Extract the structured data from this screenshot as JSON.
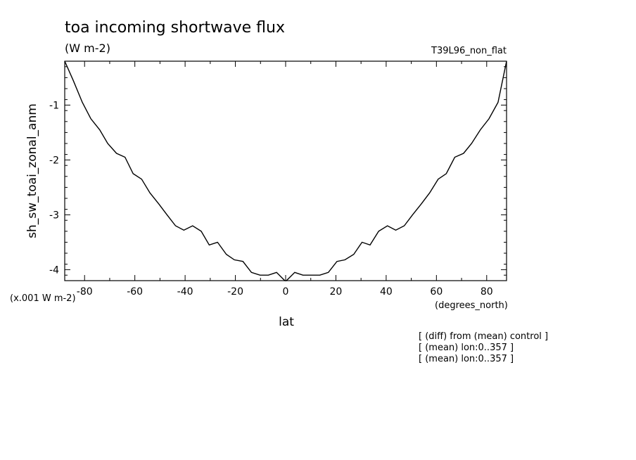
{
  "chart_data": {
    "type": "line",
    "title": "toa incoming shortwave flux",
    "units": "(W m-2)",
    "dataset": "T39L96_non_flat",
    "xlabel": "lat",
    "x_units": "(degrees_north)",
    "ylabel": "sh_sw_toai_zonal_anm",
    "y_units": "(x.001 W m-2)",
    "xlim": [
      -87.9,
      87.9
    ],
    "ylim": [
      -4.2,
      -0.2
    ],
    "xticks": [
      -80,
      -60,
      -40,
      -20,
      0,
      20,
      40,
      60,
      80
    ],
    "xtick_labels": [
      "-80",
      "-60",
      "-40",
      "-20",
      "0",
      "20",
      "40",
      "60",
      "80"
    ],
    "yticks": [
      -4,
      -3,
      -2,
      -1
    ],
    "ytick_labels": [
      "-4",
      "-3",
      "-2",
      "-1"
    ],
    "grid": false,
    "notes": [
      "[ (diff) from (mean) control ]",
      "[ (mean) lon:0..357 ]",
      "[ (mean) lon:0..357 ]"
    ],
    "series": [
      {
        "x": [
          -87.9,
          -84.5,
          -80.9,
          -77.5,
          -74.0,
          -70.8,
          -67.3,
          -63.9,
          -60.7,
          -57.3,
          -54.0,
          -50.5,
          -47.2,
          -43.8,
          -40.5,
          -37.0,
          -33.6,
          -30.4,
          -27.1,
          -23.6,
          -20.4,
          -17.0,
          -13.6,
          -10.2,
          -6.9,
          -3.6,
          -0.3,
          0.3,
          3.6,
          6.9,
          10.2,
          13.6,
          17.0,
          20.4,
          23.6,
          27.1,
          30.4,
          33.6,
          37.0,
          40.5,
          43.8,
          47.2,
          50.5,
          54.0,
          57.3,
          60.7,
          63.9,
          67.3,
          70.8,
          74.0,
          77.5,
          80.9,
          84.5,
          87.9
        ],
        "y": [
          -0.2,
          -0.55,
          -0.95,
          -1.25,
          -1.45,
          -1.7,
          -1.88,
          -1.95,
          -2.25,
          -2.35,
          -2.6,
          -2.8,
          -3.0,
          -3.2,
          -3.28,
          -3.2,
          -3.3,
          -3.55,
          -3.5,
          -3.72,
          -3.82,
          -3.85,
          -4.05,
          -4.1,
          -4.1,
          -4.05,
          -4.2,
          -4.2,
          -4.05,
          -4.1,
          -4.1,
          -4.1,
          -4.05,
          -3.85,
          -3.82,
          -3.72,
          -3.5,
          -3.55,
          -3.3,
          -3.2,
          -3.28,
          -3.2,
          -3.0,
          -2.8,
          -2.6,
          -2.35,
          -2.25,
          -1.95,
          -1.88,
          -1.7,
          -1.45,
          -1.25,
          -0.95,
          -0.2
        ]
      }
    ]
  }
}
